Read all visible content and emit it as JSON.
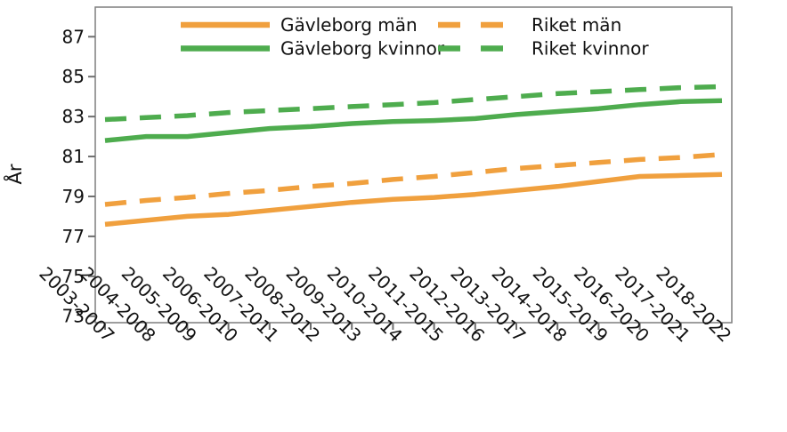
{
  "chart_data": {
    "type": "line",
    "title": "",
    "xlabel": "",
    "ylabel": "År",
    "grid": false,
    "legend_position": "top-inside-two-columns",
    "ylim": [
      72.7,
      88.5
    ],
    "y_ticks": [
      73,
      75,
      77,
      79,
      81,
      83,
      85,
      87
    ],
    "categories": [
      "2003-2007",
      "2004-2008",
      "2005-2009",
      "2006-2010",
      "2007-2011",
      "2008-2012",
      "2009-2013",
      "2010-2014",
      "2011-2015",
      "2012-2016",
      "2013-2017",
      "2014-2018",
      "2015-2019",
      "2016-2020",
      "2017-2021",
      "2018-2022"
    ],
    "series": [
      {
        "name": "Gävleborg män",
        "style": "solid",
        "color": "#F0A03E",
        "values": [
          77.6,
          77.8,
          78.0,
          78.1,
          78.3,
          78.5,
          78.7,
          78.85,
          78.95,
          79.1,
          79.3,
          79.5,
          79.75,
          80.0,
          80.05,
          80.1
        ]
      },
      {
        "name": "Gävleborg kvinnor",
        "style": "solid",
        "color": "#4EAC4E",
        "values": [
          81.8,
          82.0,
          82.0,
          82.2,
          82.4,
          82.5,
          82.65,
          82.75,
          82.8,
          82.9,
          83.1,
          83.25,
          83.4,
          83.6,
          83.75,
          83.8
        ]
      },
      {
        "name": "Riket män",
        "style": "dashed",
        "color": "#F0A03E",
        "values": [
          78.6,
          78.8,
          78.95,
          79.15,
          79.3,
          79.5,
          79.65,
          79.85,
          80.0,
          80.2,
          80.4,
          80.55,
          80.7,
          80.85,
          80.95,
          81.1
        ]
      },
      {
        "name": "Riket kvinnor",
        "style": "dashed",
        "color": "#4EAC4E",
        "values": [
          82.85,
          82.95,
          83.05,
          83.2,
          83.3,
          83.4,
          83.5,
          83.6,
          83.7,
          83.85,
          84.0,
          84.15,
          84.25,
          84.35,
          84.45,
          84.5
        ]
      }
    ]
  },
  "colors": {
    "plot_border": "#7e7e7e",
    "tick": "#6e6e6e",
    "text": "#111111",
    "background": "#ffffff"
  }
}
